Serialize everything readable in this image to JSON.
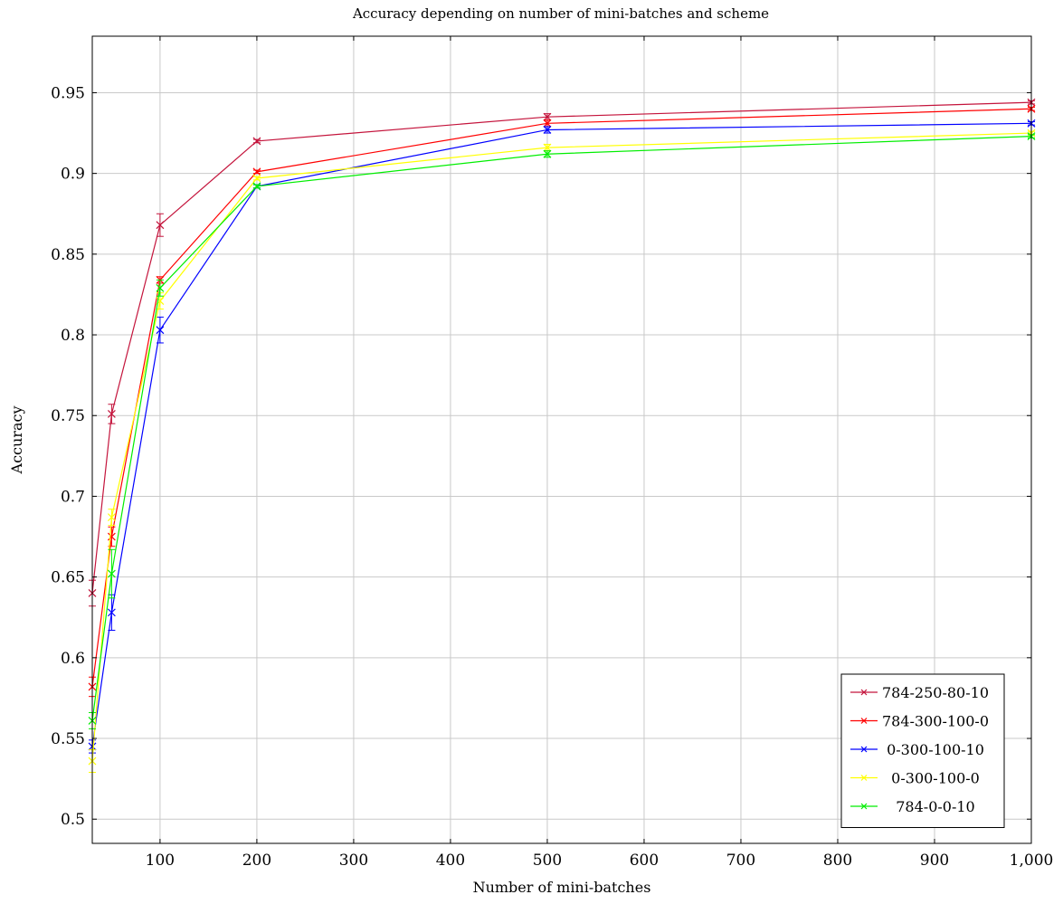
{
  "chart_data": {
    "type": "line",
    "title": "Accuracy depending on number of mini-batches and scheme",
    "xlabel": "Number of mini-batches",
    "ylabel": "Accuracy",
    "xlim": [
      30,
      1000
    ],
    "ylim": [
      0.485,
      0.985
    ],
    "xticks": [
      100,
      200,
      300,
      400,
      500,
      600,
      700,
      800,
      900,
      1000
    ],
    "xtick_labels": [
      "100",
      "200",
      "300",
      "400",
      "500",
      "600",
      "700",
      "800",
      "900",
      "1,000"
    ],
    "yticks": [
      0.5,
      0.55,
      0.6,
      0.65,
      0.7,
      0.75,
      0.8,
      0.85,
      0.9,
      0.95
    ],
    "ytick_labels": [
      "0.5",
      "0.55",
      "0.6",
      "0.65",
      "0.7",
      "0.75",
      "0.8",
      "0.85",
      "0.9",
      "0.95"
    ],
    "grid": true,
    "legend_position": "bottom-right",
    "x": [
      30,
      50,
      100,
      200,
      500,
      1000
    ],
    "series": [
      {
        "name": "784-250-80-10",
        "color": "#c4143c",
        "values": [
          0.64,
          0.751,
          0.868,
          0.92,
          0.935,
          0.944
        ],
        "errors": [
          0.008,
          0.006,
          0.007,
          0.001,
          0.002,
          0.001
        ]
      },
      {
        "name": "784-300-100-0",
        "color": "#ff0000",
        "values": [
          0.582,
          0.675,
          0.834,
          0.901,
          0.931,
          0.94
        ],
        "errors": [
          0.006,
          0.006,
          0.002,
          0.001,
          0.002,
          0.001
        ]
      },
      {
        "name": "0-300-100-10",
        "color": "#0000ff",
        "values": [
          0.545,
          0.628,
          0.803,
          0.892,
          0.927,
          0.931
        ],
        "errors": [
          0.004,
          0.011,
          0.008,
          0.001,
          0.002,
          0.001
        ]
      },
      {
        "name": "0-300-100-0",
        "color": "#ffff00",
        "values": [
          0.536,
          0.687,
          0.821,
          0.897,
          0.916,
          0.925
        ],
        "errors": [
          0.007,
          0.005,
          0.005,
          0.001,
          0.002,
          0.001
        ]
      },
      {
        "name": "784-0-0-10",
        "color": "#00ee00",
        "values": [
          0.561,
          0.652,
          0.829,
          0.892,
          0.912,
          0.923
        ],
        "errors": [
          0.005,
          0.015,
          0.005,
          0.001,
          0.002,
          0.001
        ]
      }
    ]
  }
}
